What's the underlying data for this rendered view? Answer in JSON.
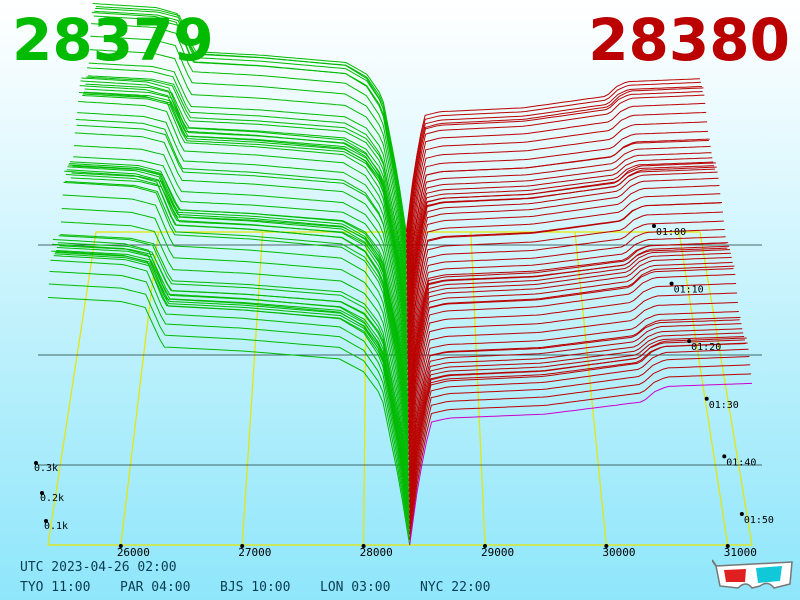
{
  "colors": {
    "bid": "#00bb00",
    "ask": "#bb0000",
    "latest": "#cc00cc",
    "frame": "#e6e600"
  },
  "header": {
    "bid_price": "28379",
    "ask_price": "28380"
  },
  "footer": {
    "utc": "UTC 2023-04-26 02:00",
    "clocks": [
      {
        "label": "TYO 11:00"
      },
      {
        "label": "PAR 04:00"
      },
      {
        "label": "BJS 10:00"
      },
      {
        "label": "LON 03:00"
      },
      {
        "label": "NYC 22:00"
      }
    ]
  },
  "icons": {
    "glasses": "3d-glasses-icon"
  },
  "chart_data": {
    "type": "area",
    "x_ticks": [
      "26000",
      "27000",
      "28000",
      "29000",
      "30000",
      "31000"
    ],
    "y_ticks": [
      "0.1k",
      "0.2k",
      "0.3k"
    ],
    "time_ticks": [
      "01:00",
      "01:10",
      "01:20",
      "01:30",
      "01:40",
      "01:50"
    ],
    "xlim": [
      25400,
      31200
    ],
    "ylim": [
      0,
      400
    ],
    "mid_price": 28379.5,
    "bid_profile": [
      [
        25400,
        250
      ],
      [
        26000,
        246
      ],
      [
        26200,
        240
      ],
      [
        26350,
        200
      ],
      [
        27000,
        196
      ],
      [
        27800,
        188
      ],
      [
        28000,
        175
      ],
      [
        28150,
        150
      ],
      [
        28300,
        60
      ],
      [
        28379,
        0
      ]
    ],
    "ask_profile": [
      [
        28380,
        0
      ],
      [
        28450,
        60
      ],
      [
        28550,
        120
      ],
      [
        28700,
        124
      ],
      [
        29500,
        128
      ],
      [
        30300,
        140
      ],
      [
        30400,
        150
      ],
      [
        30500,
        155
      ],
      [
        31200,
        158
      ]
    ],
    "num_snapshots": 60
  }
}
